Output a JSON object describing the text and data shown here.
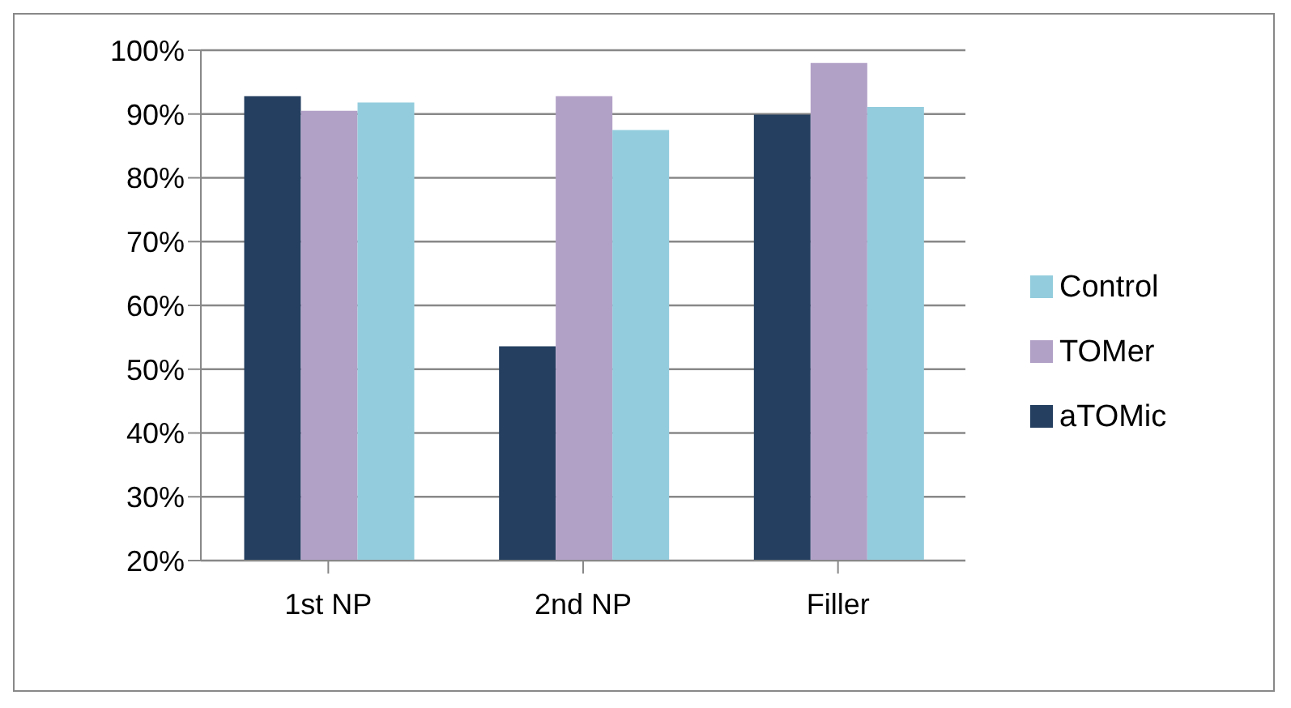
{
  "chart_data": {
    "type": "bar",
    "categories": [
      "1st NP",
      "2nd NP",
      "Filler"
    ],
    "series": [
      {
        "name": "aTOMic",
        "color": "#243f60",
        "values": [
          92.8,
          53.6,
          89.9
        ]
      },
      {
        "name": "TOMer",
        "color": "#b2a1c7",
        "values": [
          90.5,
          92.8,
          98.0
        ]
      },
      {
        "name": "Control",
        "color": "#93cddd",
        "values": [
          91.8,
          87.5,
          91.1
        ]
      }
    ],
    "ylim": [
      20,
      100
    ],
    "yticks": [
      {
        "value": 20,
        "label": "20%"
      },
      {
        "value": 30,
        "label": "30%"
      },
      {
        "value": 40,
        "label": "40%"
      },
      {
        "value": 50,
        "label": "50%"
      },
      {
        "value": 60,
        "label": "60%"
      },
      {
        "value": 70,
        "label": "70%"
      },
      {
        "value": 80,
        "label": "80%"
      },
      {
        "value": 90,
        "label": "90%"
      },
      {
        "value": 100,
        "label": "100%"
      }
    ],
    "grid": "y",
    "legend": "right"
  }
}
